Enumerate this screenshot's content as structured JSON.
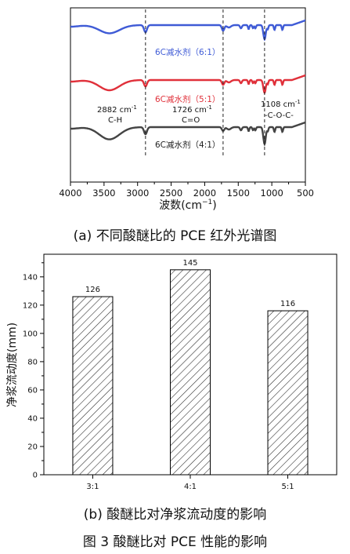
{
  "ir": {
    "caption": "(a) 不同酸醚比的 PCE 红外光谱图",
    "x_label_cn": "波数",
    "x_label_unit": "(cm",
    "x_label_sup": "−1",
    "x_label_close": ")",
    "x_ticks": [
      "4000",
      "3500",
      "3000",
      "2500",
      "2000",
      "1500",
      "1000",
      "500"
    ],
    "colors": {
      "s61": "#3f5bd6",
      "s51": "#e0303a",
      "s41": "#444444"
    },
    "series_labels": {
      "s61": "6C减水剂（6:1）",
      "s51": "6C减水剂（5:1）",
      "s41": "6C减水剂（4:1）"
    },
    "annotations": {
      "a2882_1": "2882 cm",
      "a2882_sup": "-1",
      "a2882_2": "C-H",
      "a1726_1": "1726 cm",
      "a1726_sup": "-1",
      "a1726_2": "C=O",
      "a1108_1": "1108 cm",
      "a1108_sup": "-1",
      "a1108_2": "-C-O-C-"
    }
  },
  "chart_data": [
    {
      "type": "line",
      "x_axis_reversed": true,
      "xlim": [
        4000,
        500
      ],
      "marker_lines": [
        2882,
        1726,
        1108
      ],
      "series_labels_printed": [
        "6C减水剂（6:1）",
        "6C减水剂（5:1）",
        "6C减水剂（4:1）"
      ]
    },
    {
      "type": "bar",
      "categories": [
        "3:1",
        "4:1",
        "5:1"
      ],
      "values": [
        126,
        145,
        116
      ],
      "ylabel": "净浆流动度(mm)",
      "ylim": [
        0,
        150
      ],
      "yticks": [
        "0",
        "20",
        "40",
        "60",
        "80",
        "100",
        "120",
        "140"
      ]
    }
  ],
  "bar": {
    "caption": "(b) 酸醚比对净浆流动度的影响",
    "ylabel": "净浆流动度(mm)",
    "value_labels": [
      "126",
      "145",
      "116"
    ],
    "categories": [
      "3:1",
      "4:1",
      "5:1"
    ],
    "yticks": [
      "0",
      "20",
      "40",
      "60",
      "80",
      "100",
      "120",
      "140"
    ]
  },
  "figure_caption": "图 3   酸醚比对 PCE 性能的影响"
}
